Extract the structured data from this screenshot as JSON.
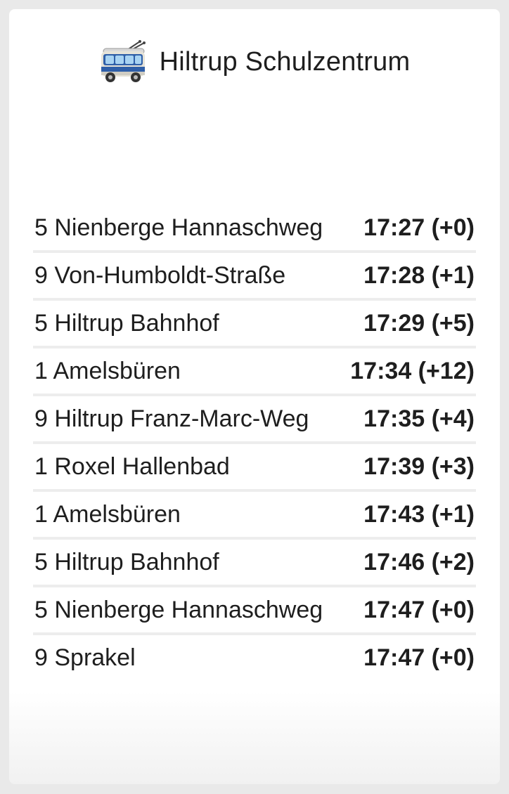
{
  "header": {
    "icon": "trolleybus-icon",
    "title": "Hiltrup Schulzentrum"
  },
  "departures": [
    {
      "line_destination": "5 Nienberge Hannaschweg",
      "time": "17:27 (+0)"
    },
    {
      "line_destination": "9 Von-Humboldt-Straße",
      "time": "17:28 (+1)"
    },
    {
      "line_destination": "5 Hiltrup Bahnhof",
      "time": "17:29 (+5)"
    },
    {
      "line_destination": "1 Amelsbüren",
      "time": "17:34 (+12)"
    },
    {
      "line_destination": "9 Hiltrup Franz-Marc-Weg",
      "time": "17:35 (+4)"
    },
    {
      "line_destination": "1 Roxel Hallenbad",
      "time": "17:39 (+3)"
    },
    {
      "line_destination": "1 Amelsbüren",
      "time": "17:43 (+1)"
    },
    {
      "line_destination": "5 Hiltrup Bahnhof",
      "time": "17:46 (+2)"
    },
    {
      "line_destination": "5 Nienberge Hannaschweg",
      "time": "17:47 (+0)"
    },
    {
      "line_destination": "9 Sprakel",
      "time": "17:47 (+0)"
    }
  ]
}
